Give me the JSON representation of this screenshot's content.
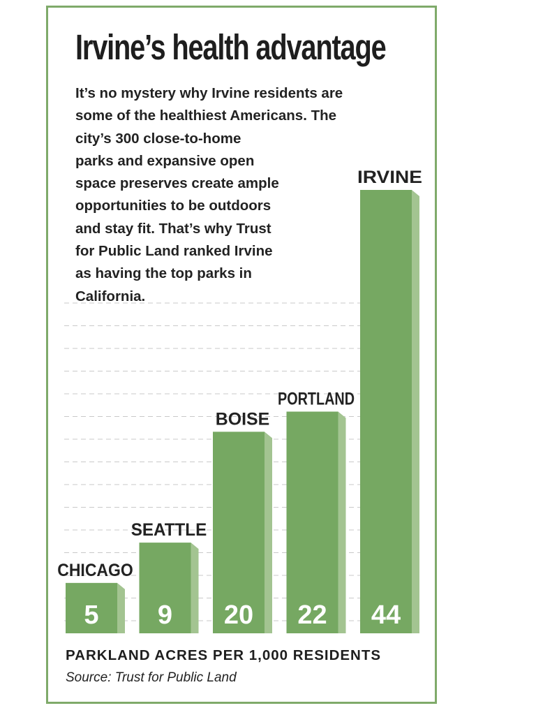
{
  "title": "Irvine’s health advantage",
  "description_lines": [
    "It’s no mystery why Irvine residents are",
    "some of the healthiest Americans. The",
    "city’s 300 close-to-home",
    "parks and expansive open",
    "space preserves create ample",
    "opportunities to be outdoors",
    "and stay fit. That’s why Trust",
    "for Public Land ranked Irvine",
    "as having the top parks in",
    "California."
  ],
  "source": "Source: Trust for Public Land",
  "colors": {
    "bar": "#76a862",
    "bar_side": "#a3c491",
    "frame": "#7faa6a",
    "grid": "#c9c9c9"
  },
  "chart_data": {
    "type": "bar",
    "title": "Irvine’s health advantage",
    "xlabel": "PARKLAND ACRES PER 1,000 RESIDENTS",
    "ylabel": "",
    "categories": [
      "CHICAGO",
      "SEATTLE",
      "BOISE",
      "PORTLAND",
      "IRVINE"
    ],
    "values": [
      5,
      9,
      20,
      22,
      44
    ],
    "ylim": [
      0,
      44
    ],
    "grid": true,
    "legend": "none"
  }
}
